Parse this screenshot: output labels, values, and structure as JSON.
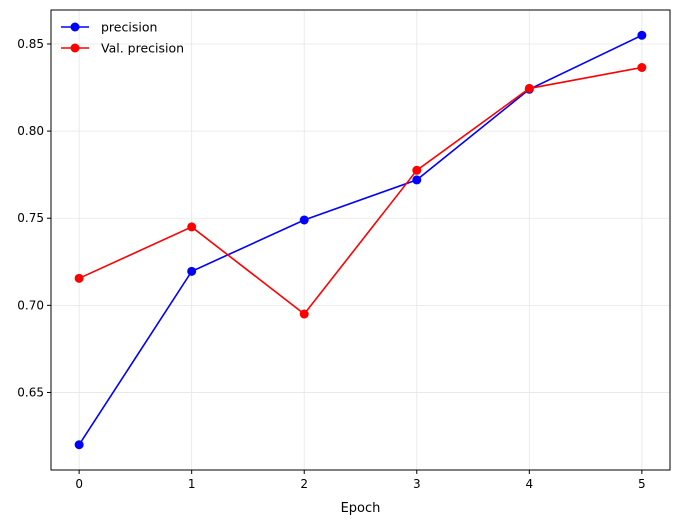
{
  "chart_data": {
    "type": "line",
    "title": "",
    "xlabel": "Epoch",
    "ylabel": "",
    "x": [
      0,
      1,
      2,
      3,
      4,
      5
    ],
    "xlim": [
      -0.25,
      5.25
    ],
    "ylim": [
      0.6055,
      0.8695
    ],
    "xticks": [
      0,
      1,
      2,
      3,
      4,
      5
    ],
    "yticks": [
      0.65,
      0.7,
      0.75,
      0.8,
      0.85
    ],
    "ytick_labels": [
      "0.65",
      "0.70",
      "0.75",
      "0.80",
      "0.85"
    ],
    "xtick_labels": [
      "0",
      "1",
      "2",
      "3",
      "4",
      "5"
    ],
    "grid": true,
    "legend_position": "top-left",
    "series": [
      {
        "name": "precision",
        "color": "#0000ff",
        "marker": "circle",
        "values": [
          0.62,
          0.7195,
          0.749,
          0.772,
          0.824,
          0.855
        ]
      },
      {
        "name": "Val. precision",
        "color": "#ff0000",
        "marker": "circle",
        "values": [
          0.7155,
          0.745,
          0.695,
          0.7775,
          0.8245,
          0.8365
        ]
      }
    ]
  }
}
